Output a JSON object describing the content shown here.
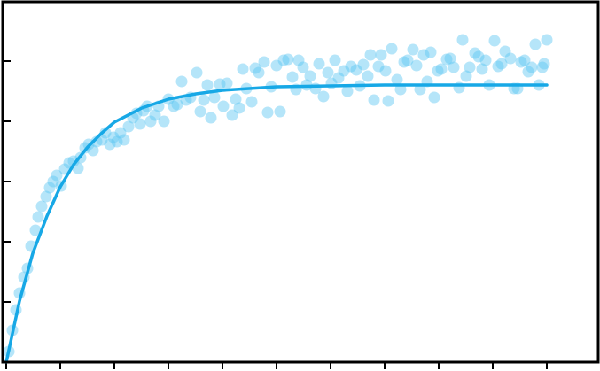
{
  "chart_data": {
    "type": "scatter",
    "xlim": [
      -4,
      668
    ],
    "ylim": [
      0,
      407
    ],
    "xticks": [
      0,
      61,
      122,
      183,
      244,
      305,
      366,
      427,
      488,
      549,
      610
    ],
    "yticks": [
      0,
      68,
      136,
      204,
      272,
      340
    ],
    "series": [
      {
        "type": "scatter",
        "color": "#5cc6f2",
        "x": [
          3,
          7,
          11,
          15,
          20,
          24,
          28,
          33,
          36,
          40,
          45,
          49,
          53,
          57,
          62,
          66,
          71,
          76,
          81,
          84,
          89,
          93,
          98,
          102,
          108,
          112,
          117,
          121,
          125,
          129,
          133,
          138,
          143,
          147,
          151,
          155,
          159,
          163,
          168,
          172,
          178,
          183,
          189,
          193,
          198,
          203,
          208,
          215,
          219,
          223,
          227,
          231,
          235,
          241,
          245,
          249,
          255,
          259,
          263,
          267,
          271,
          277,
          281,
          285,
          291,
          295,
          299,
          305,
          309,
          313,
          318,
          323,
          327,
          330,
          335,
          339,
          343,
          349,
          353,
          358,
          363,
          367,
          371,
          375,
          381,
          385,
          389,
          395,
          399,
          403,
          408,
          411,
          415,
          420,
          423,
          428,
          431,
          435,
          441,
          445,
          449,
          453,
          459,
          463,
          467,
          471,
          475,
          479,
          483,
          487,
          491,
          497,
          501,
          505,
          511,
          515,
          519,
          523,
          529,
          533,
          537,
          541,
          545,
          551,
          555,
          559,
          563,
          569,
          573,
          577,
          581,
          585,
          589,
          593,
          597,
          601,
          605,
          607,
          610
        ],
        "values": [
          12,
          36,
          59,
          78,
          96,
          106,
          131,
          149,
          164,
          176,
          187,
          197,
          204,
          211,
          199,
          218,
          225,
          227,
          219,
          231,
          242,
          246,
          239,
          249,
          251,
          259,
          246,
          254,
          249,
          259,
          251,
          266,
          276,
          281,
          269,
          284,
          289,
          272,
          279,
          289,
          272,
          297,
          289,
          291,
          317,
          296,
          299,
          327,
          283,
          296,
          313,
          276,
          299,
          314,
          289,
          315,
          279,
          297,
          287,
          331,
          309,
          294,
          332,
          327,
          339,
          282,
          311,
          335,
          283,
          341,
          342,
          322,
          308,
          341,
          333,
          313,
          323,
          309,
          337,
          300,
          327,
          315,
          341,
          321,
          329,
          306,
          334,
          330,
          312,
          336,
          323,
          347,
          296,
          334,
          347,
          329,
          295,
          354,
          319,
          308,
          339,
          341,
          353,
          335,
          308,
          347,
          317,
          350,
          299,
          329,
          331,
          342,
          343,
          333,
          310,
          364,
          323,
          333,
          349,
          345,
          331,
          341,
          313,
          363,
          334,
          337,
          351,
          343,
          309,
          309,
          339,
          341,
          328,
          333,
          359,
          313,
          333,
          337,
          364
        ]
      },
      {
        "type": "line",
        "color": "#17a8e6",
        "x": [
          0,
          15,
          30,
          46,
          61,
          76,
          92,
          107,
          122,
          153,
          183,
          214,
          244,
          305,
          366,
          427,
          488,
          549,
          610
        ],
        "values": [
          0,
          69,
          123,
          165,
          198,
          223,
          243,
          258,
          271,
          287,
          297,
          303,
          307,
          311,
          312,
          313,
          313,
          313,
          313
        ]
      }
    ]
  }
}
